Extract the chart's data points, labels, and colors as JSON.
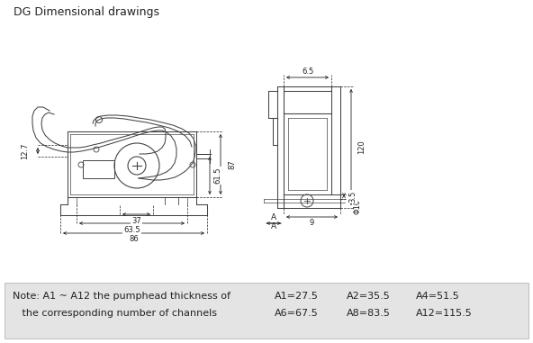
{
  "title": "DG Dimensional drawings",
  "bg_color": "#ffffff",
  "title_fontsize": 9,
  "note_line1": "Note: A1 ~ A12 the pumphead thickness of",
  "note_line2": "   the corresponding number of channels",
  "specs_row1_items": [
    "A1=27.5",
    "A2=35.5",
    "A4=51.5"
  ],
  "specs_row2_items": [
    "A6=67.5",
    "A8=83.5",
    "A12=115.5"
  ],
  "note_bg": "#e0e0e0",
  "dim_color": "#222222",
  "line_color": "#444444"
}
